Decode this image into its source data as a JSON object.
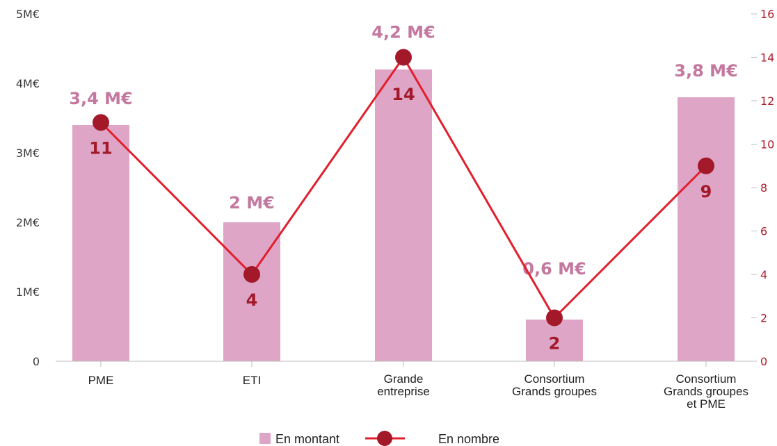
{
  "chart_data": {
    "type": "bar",
    "categories": [
      [
        "PME"
      ],
      [
        "ETI"
      ],
      [
        "Grande",
        "entreprise"
      ],
      [
        "Consortium",
        "Grands groupes"
      ],
      [
        "Consortium",
        "Grands groupes",
        "et PME"
      ]
    ],
    "series": [
      {
        "name": "En montant",
        "kind": "bar",
        "axis": "left",
        "values": [
          3.4,
          2.0,
          4.2,
          0.6,
          3.8
        ],
        "labels": [
          "3,4 M€",
          "2 M€",
          "4,2 M€",
          "0,6 M€",
          "3,8 M€"
        ]
      },
      {
        "name": "En nombre",
        "kind": "line",
        "axis": "right",
        "values": [
          11,
          4,
          14,
          2,
          9
        ],
        "labels": [
          "11",
          "4",
          "14",
          "2",
          "9"
        ]
      }
    ],
    "left_axis": {
      "min": 0,
      "max": 5,
      "ticks": [
        "0",
        "1M€",
        "2M€",
        "3M€",
        "4M€",
        "5M€"
      ]
    },
    "right_axis": {
      "min": 0,
      "max": 16,
      "ticks": [
        "0",
        "2",
        "4",
        "6",
        "8",
        "10",
        "12",
        "14",
        "16"
      ]
    },
    "legend_position": "bottom-center",
    "grid": false
  },
  "colors": {
    "bar": "#dea5c6",
    "bar_label": "#c4779f",
    "line": "#e31e2c",
    "marker": "#a3192a",
    "count_label": "#a3192a",
    "right_axis": "#b01e2d"
  }
}
